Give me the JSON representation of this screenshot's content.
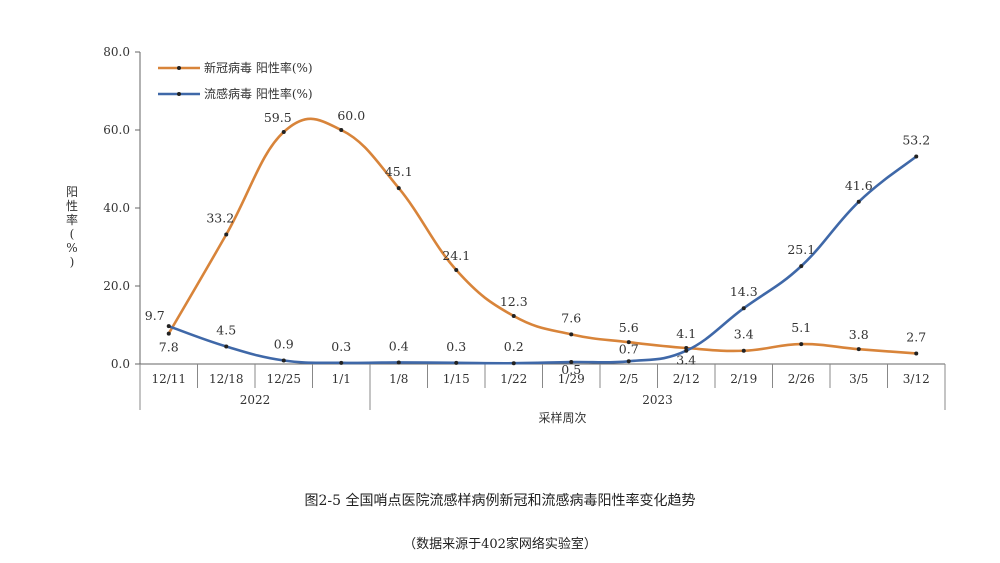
{
  "chart_data": {
    "type": "line",
    "ylabel": "阳性率(%)",
    "xlabel": "采样周次",
    "ylim": [
      0,
      80
    ],
    "yticks": [
      "0.0",
      "20.0",
      "40.0",
      "60.0",
      "80.0"
    ],
    "categories": [
      "12/11",
      "12/18",
      "12/25",
      "1/1",
      "1/8",
      "1/15",
      "1/22",
      "1/29",
      "2/5",
      "2/12",
      "2/19",
      "2/26",
      "3/5",
      "3/12"
    ],
    "year_groups": [
      {
        "label": "2022",
        "start": 0,
        "end": 3
      },
      {
        "label": "2023",
        "start": 4,
        "end": 13
      }
    ],
    "legend_position": "top-left",
    "series": [
      {
        "name": "新冠病毒 阳性率(%)",
        "color": "#D8843A",
        "values": [
          7.8,
          33.2,
          59.5,
          60.0,
          45.1,
          24.1,
          12.3,
          7.6,
          5.6,
          4.1,
          3.4,
          5.1,
          3.8,
          2.7
        ],
        "labels": [
          "7.8",
          "33.2",
          "59.5",
          "60.0",
          "45.1",
          "24.1",
          "12.3",
          "7.6",
          "5.6",
          "4.1",
          "3.4",
          "5.1",
          "3.8",
          "2.7"
        ]
      },
      {
        "name": "流感病毒 阳性率(%)",
        "color": "#3F68A8",
        "values": [
          9.7,
          4.5,
          0.9,
          0.3,
          0.4,
          0.3,
          0.2,
          0.5,
          0.7,
          3.4,
          14.3,
          25.1,
          41.6,
          53.2
        ],
        "labels": [
          "9.7",
          "4.5",
          "0.9",
          "0.3",
          "0.4",
          "0.3",
          "0.2",
          "0.5",
          "0.7",
          "3.4",
          "14.3",
          "25.1",
          "41.6",
          "53.2"
        ]
      }
    ]
  },
  "caption": {
    "title": "图2-5 全国哨点医院流感样病例新冠和流感病毒阳性率变化趋势",
    "source": "（数据来源于402家网络实验室）"
  }
}
